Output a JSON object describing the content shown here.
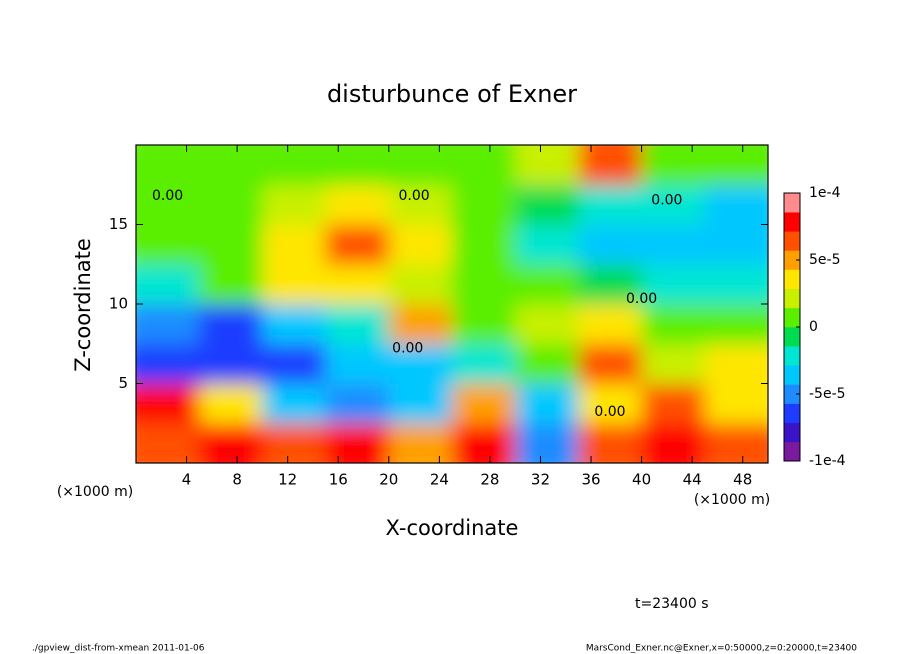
{
  "chart_data": {
    "type": "heatmap",
    "title": "disturbunce of Exner",
    "xlabel": "X-coordinate",
    "ylabel": "Z-coordinate",
    "x_unit_labels": [
      "(×1000 m)",
      "(×1000 m)"
    ],
    "xlim": [
      0,
      50
    ],
    "xticks": [
      4,
      8,
      12,
      16,
      20,
      24,
      28,
      32,
      36,
      40,
      44,
      48
    ],
    "ylim": [
      0,
      20
    ],
    "yticks": [
      5,
      10,
      15
    ],
    "x": [
      2.5,
      7.5,
      12.5,
      17.5,
      22.5,
      27.5,
      32.5,
      37.5,
      42.5,
      47.5
    ],
    "z": [
      1.25,
      3.75,
      6.25,
      8.75,
      11.25,
      13.75,
      16.25,
      18.75
    ],
    "values": [
      [
        7e-05,
        8e-05,
        6e-05,
        8e-05,
        5e-05,
        8e-05,
        -5e-05,
        6e-05,
        8e-05,
        7e-05
      ],
      [
        8e-05,
        3e-05,
        -3e-05,
        -5e-05,
        -4e-05,
        5e-05,
        -3e-05,
        3e-05,
        6e-05,
        4e-05
      ],
      [
        -6e-05,
        -7e-05,
        -6e-05,
        -4e-05,
        -3e-05,
        -2e-05,
        0,
        6e-05,
        2e-05,
        3e-05
      ],
      [
        -5e-05,
        -6e-05,
        -4e-05,
        -2e-05,
        5e-05,
        1e-05,
        2e-05,
        3e-05,
        1e-05,
        1e-05
      ],
      [
        -2e-05,
        0,
        3e-05,
        4e-05,
        2e-05,
        1e-05,
        0,
        -1e-05,
        -2e-05,
        -2e-05
      ],
      [
        0,
        1e-05,
        3e-05,
        6e-05,
        3e-05,
        0,
        -2e-05,
        -3e-05,
        -4e-05,
        -4e-05
      ],
      [
        1e-05,
        1e-05,
        2e-05,
        3e-05,
        2e-05,
        0,
        -1e-05,
        -2e-05,
        -2e-05,
        -3e-05
      ],
      [
        1e-05,
        1e-05,
        1e-05,
        1e-05,
        1e-05,
        1e-05,
        2e-05,
        6e-05,
        1e-05,
        1e-05
      ]
    ],
    "colorbar": {
      "clim": [
        -0.0001,
        0.0001
      ],
      "ticks": [
        {
          "value": 0.0001,
          "label": "1e-4"
        },
        {
          "value": 5e-05,
          "label": "5e-5"
        },
        0,
        {
          "value": -5e-05,
          "label": "-5e-5"
        },
        {
          "value": -0.0001,
          "label": "-1e-4"
        }
      ],
      "colors": [
        "#7a1a9e",
        "#3c14c8",
        "#1e3cff",
        "#1e8cff",
        "#00c8ff",
        "#00e6d2",
        "#00dc50",
        "#5aee00",
        "#c8f000",
        "#ffe600",
        "#ffa000",
        "#ff5000",
        "#ff0000",
        "#ff8c8c"
      ]
    },
    "contour_labels": [
      "0.00",
      "0.00",
      "0.00",
      "0.00",
      "0.00",
      "0.00"
    ],
    "time_label": "t=23400 s",
    "footer_left": "./gpview_dist-from-xmean  2011-01-06",
    "footer_right": "MarsCond_Exner.nc@Exner,x=0:50000,z=0:20000,t=23400"
  }
}
